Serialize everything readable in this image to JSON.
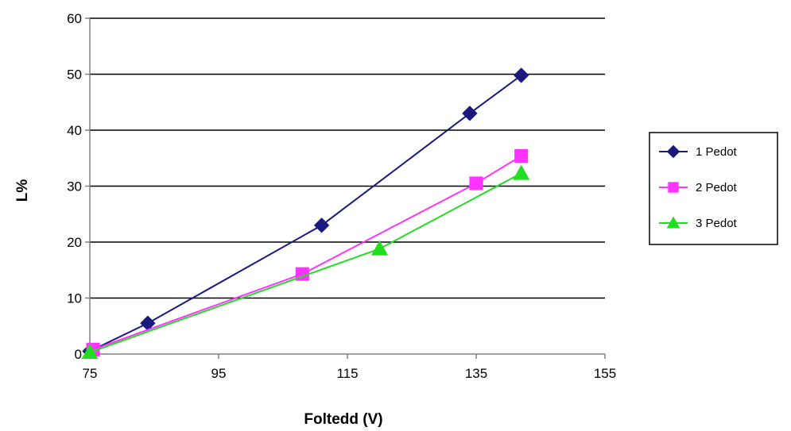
{
  "chart_data": {
    "type": "line",
    "title": "",
    "xlabel": "Foltedd (V)",
    "ylabel": "L%",
    "xlim": [
      75,
      155
    ],
    "ylim": [
      0,
      60
    ],
    "x_ticks": [
      "75",
      "95",
      "115",
      "135",
      "155"
    ],
    "y_ticks": [
      "0",
      "10",
      "20",
      "30",
      "40",
      "50",
      "60"
    ],
    "grid": "horizontal",
    "legend_position": "right",
    "series": [
      {
        "name": "1 Pedot",
        "color": "#1a1a7e",
        "marker": "diamond",
        "points": [
          [
            75,
            0.5
          ],
          [
            84,
            5.5
          ],
          [
            111,
            23
          ],
          [
            134,
            43
          ],
          [
            142,
            49.8
          ]
        ]
      },
      {
        "name": "2 Pedot",
        "color": "#ff33ff",
        "marker": "square",
        "points": [
          [
            75.5,
            0.8
          ],
          [
            108,
            14.3
          ],
          [
            135,
            30.5
          ],
          [
            142,
            35.4
          ]
        ]
      },
      {
        "name": "3 Pedot",
        "color": "#22dd22",
        "marker": "triangle",
        "points": [
          [
            75,
            0.3
          ],
          [
            120,
            18.8
          ],
          [
            142,
            32.3
          ]
        ]
      }
    ]
  }
}
